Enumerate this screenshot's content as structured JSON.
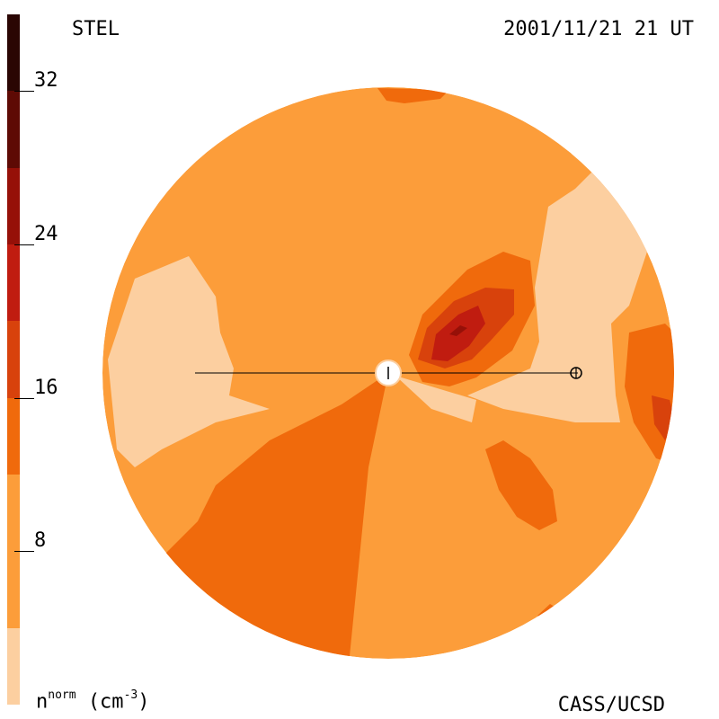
{
  "header": {
    "station": "STEL",
    "datetime": "2001/11/21 21 UT"
  },
  "footer": {
    "credit": "CASS/UCSD",
    "units_base": "n",
    "units_sup": "norm",
    "units_rest": "(cm",
    "units_exp": "-3",
    "units_close": ")"
  },
  "chart_data": {
    "type": "heatmap",
    "title": "",
    "colorbar": {
      "range": [
        0,
        36
      ],
      "ticks": [
        8,
        16,
        24,
        32
      ],
      "tick_labels": [
        "8",
        "16",
        "24",
        "32"
      ],
      "levels": [
        {
          "from": 0,
          "to": 4,
          "color": "#fccfa0"
        },
        {
          "from": 4,
          "to": 12,
          "color": "#fc9d3a"
        },
        {
          "from": 12,
          "to": 16,
          "color": "#f06a0c"
        },
        {
          "from": 16,
          "to": 20,
          "color": "#d8420c"
        },
        {
          "from": 20,
          "to": 24,
          "color": "#c01c10"
        },
        {
          "from": 24,
          "to": 28,
          "color": "#961008"
        },
        {
          "from": 28,
          "to": 32,
          "color": "#5e0a04"
        },
        {
          "from": 32,
          "to": 36,
          "color": "#2a0603"
        }
      ]
    },
    "markers": [
      "Sun",
      "Earth"
    ]
  }
}
